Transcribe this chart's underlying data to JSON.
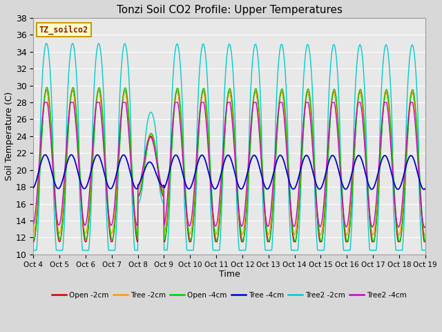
{
  "title": "Tonzi Soil CO2 Profile: Upper Temperatures",
  "xlabel": "Time",
  "ylabel": "Soil Temperature (C)",
  "ylim": [
    10,
    38
  ],
  "yticks": [
    10,
    12,
    14,
    16,
    18,
    20,
    22,
    24,
    26,
    28,
    30,
    32,
    34,
    36,
    38
  ],
  "x_labels": [
    "Oct 4",
    "Oct 5",
    "Oct 6",
    "Oct 7",
    "Oct 8",
    "Oct 9",
    "Oct 10",
    "Oct 11",
    "Oct 12",
    "Oct 13",
    "Oct 14",
    "Oct 15",
    "Oct 16",
    "Oct 17",
    "Oct 18",
    "Oct 19"
  ],
  "watermark": "TZ_soilco2",
  "fig_bg": "#d8d8d8",
  "axes_bg": "#e8e8e8",
  "grid_color": "#ffffff",
  "series": [
    {
      "label": "Open -2cm",
      "color": "#cc0000"
    },
    {
      "label": "Tree -2cm",
      "color": "#ff9900"
    },
    {
      "label": "Open -4cm",
      "color": "#00cc00"
    },
    {
      "label": "Tree -4cm",
      "color": "#0000cc"
    },
    {
      "label": "Tree2 -2cm",
      "color": "#00cccc"
    },
    {
      "label": "Tree2 -4cm",
      "color": "#cc00cc"
    }
  ],
  "num_days": 15,
  "spd": 144
}
